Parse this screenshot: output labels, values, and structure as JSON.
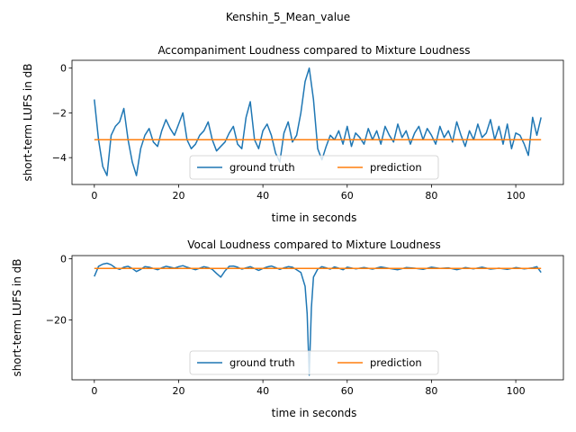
{
  "figure": {
    "suptitle": "Kenshin_5_Mean_value"
  },
  "chart_data": [
    {
      "type": "line",
      "title": "Accompaniment Loudness compared to Mixture Loudness",
      "xlabel": "time in seconds",
      "ylabel": "short-term LUFS in dB",
      "xlim": [
        -5.3,
        111.3
      ],
      "ylim": [
        -5.2,
        0.35
      ],
      "xticks": [
        0,
        20,
        40,
        60,
        80,
        100
      ],
      "yticks": [
        -4,
        -2,
        0
      ],
      "grid": false,
      "legend": {
        "placement": "lower center",
        "columns": 2
      },
      "series": [
        {
          "name": "ground truth",
          "color": "#1f77b4",
          "x": [
            0,
            1,
            2,
            3,
            4,
            5,
            6,
            7,
            8,
            9,
            10,
            11,
            12,
            13,
            14,
            15,
            16,
            17,
            18,
            19,
            20,
            21,
            22,
            23,
            24,
            25,
            26,
            27,
            28,
            29,
            30,
            31,
            32,
            33,
            34,
            35,
            36,
            37,
            38,
            39,
            40,
            41,
            42,
            43,
            44,
            45,
            46,
            47,
            48,
            49,
            50,
            51,
            52,
            53,
            54,
            55,
            56,
            57,
            58,
            59,
            60,
            61,
            62,
            63,
            64,
            65,
            66,
            67,
            68,
            69,
            70,
            71,
            72,
            73,
            74,
            75,
            76,
            77,
            78,
            79,
            80,
            81,
            82,
            83,
            84,
            85,
            86,
            87,
            88,
            89,
            90,
            91,
            92,
            93,
            94,
            95,
            96,
            97,
            98,
            99,
            100,
            101,
            102,
            103,
            104,
            105,
            106
          ],
          "y": [
            -1.4,
            -3.2,
            -4.4,
            -4.8,
            -3.0,
            -2.6,
            -2.4,
            -1.8,
            -3.2,
            -4.2,
            -4.8,
            -3.6,
            -3.0,
            -2.7,
            -3.3,
            -3.5,
            -2.8,
            -2.3,
            -2.7,
            -3.0,
            -2.5,
            -2.0,
            -3.2,
            -3.6,
            -3.4,
            -3.0,
            -2.8,
            -2.4,
            -3.2,
            -3.7,
            -3.5,
            -3.3,
            -2.9,
            -2.6,
            -3.4,
            -3.6,
            -2.2,
            -1.5,
            -3.2,
            -3.6,
            -2.8,
            -2.5,
            -3.0,
            -3.8,
            -4.2,
            -2.9,
            -2.4,
            -3.3,
            -3.0,
            -2.0,
            -0.6,
            0.0,
            -1.4,
            -3.6,
            -4.1,
            -3.5,
            -3.0,
            -3.2,
            -2.8,
            -3.4,
            -2.6,
            -3.5,
            -2.9,
            -3.1,
            -3.4,
            -2.7,
            -3.2,
            -2.8,
            -3.4,
            -2.6,
            -3.0,
            -3.3,
            -2.5,
            -3.1,
            -2.8,
            -3.4,
            -2.9,
            -2.6,
            -3.2,
            -2.7,
            -3.0,
            -3.4,
            -2.6,
            -3.1,
            -2.8,
            -3.3,
            -2.4,
            -3.0,
            -3.5,
            -2.8,
            -3.2,
            -2.5,
            -3.1,
            -2.9,
            -2.3,
            -3.2,
            -2.6,
            -3.4,
            -2.5,
            -3.6,
            -2.9,
            -3.0,
            -3.4,
            -3.9,
            -2.2,
            -3.0,
            -2.2
          ]
        },
        {
          "name": "prediction",
          "color": "#ff7f0e",
          "x": [
            0,
            106
          ],
          "y": [
            -3.2,
            -3.2
          ]
        }
      ]
    },
    {
      "type": "line",
      "title": "Vocal Loudness compared to Mixture Loudness",
      "xlabel": "time in seconds",
      "ylabel": "short-term LUFS in dB",
      "xlim": [
        -5.3,
        111.3
      ],
      "ylim": [
        -39.5,
        1.0
      ],
      "xticks": [
        0,
        20,
        40,
        60,
        80,
        100
      ],
      "yticks": [
        -20,
        0
      ],
      "grid": false,
      "legend": {
        "placement": "lower center",
        "columns": 2
      },
      "series": [
        {
          "name": "ground truth",
          "color": "#1f77b4",
          "x": [
            0,
            1,
            2,
            3,
            4,
            5,
            6,
            7,
            8,
            9,
            10,
            11,
            12,
            13,
            14,
            15,
            16,
            17,
            18,
            19,
            20,
            21,
            22,
            23,
            24,
            25,
            26,
            27,
            28,
            29,
            30,
            31,
            32,
            33,
            34,
            35,
            36,
            37,
            38,
            39,
            40,
            41,
            42,
            43,
            44,
            45,
            46,
            47,
            48,
            49,
            50,
            50.5,
            51,
            51.5,
            52,
            53,
            54,
            55,
            56,
            57,
            58,
            59,
            60,
            62,
            64,
            66,
            68,
            70,
            72,
            74,
            76,
            78,
            80,
            82,
            84,
            86,
            88,
            90,
            92,
            94,
            96,
            98,
            100,
            102,
            104,
            105,
            106
          ],
          "y": [
            -5.8,
            -2.5,
            -1.8,
            -1.5,
            -2.0,
            -3.0,
            -3.5,
            -2.8,
            -2.5,
            -3.2,
            -4.2,
            -3.5,
            -2.6,
            -2.8,
            -3.2,
            -3.6,
            -3.0,
            -2.5,
            -2.8,
            -3.1,
            -2.6,
            -2.3,
            -2.8,
            -3.2,
            -3.6,
            -3.1,
            -2.6,
            -2.9,
            -3.5,
            -4.8,
            -6.0,
            -4.0,
            -2.5,
            -2.4,
            -2.8,
            -3.4,
            -3.0,
            -2.6,
            -3.2,
            -3.8,
            -3.2,
            -2.7,
            -2.4,
            -2.9,
            -3.5,
            -3.0,
            -2.6,
            -2.8,
            -3.6,
            -4.5,
            -9.0,
            -18.0,
            -38.0,
            -16.0,
            -6.0,
            -3.4,
            -2.6,
            -3.0,
            -3.4,
            -2.7,
            -3.1,
            -3.6,
            -2.8,
            -3.3,
            -2.9,
            -3.4,
            -2.7,
            -3.2,
            -3.6,
            -2.9,
            -3.1,
            -3.5,
            -2.8,
            -3.2,
            -3.0,
            -3.6,
            -2.9,
            -3.3,
            -2.8,
            -3.4,
            -3.1,
            -3.5,
            -2.9,
            -3.3,
            -3.0,
            -2.6,
            -4.5
          ]
        },
        {
          "name": "prediction",
          "color": "#ff7f0e",
          "x": [
            0,
            106
          ],
          "y": [
            -3.2,
            -3.2
          ]
        }
      ]
    }
  ]
}
